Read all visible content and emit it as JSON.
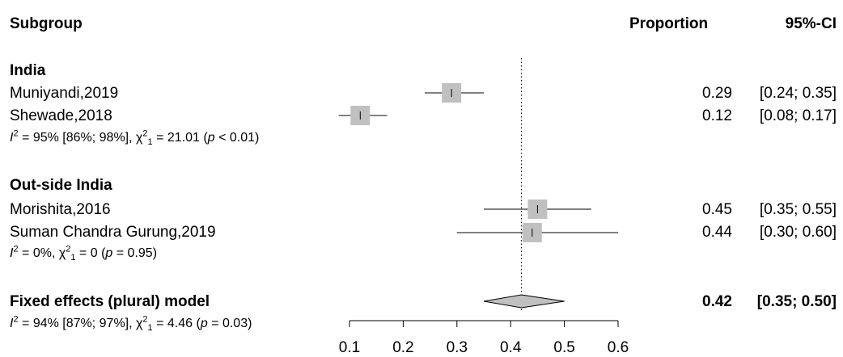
{
  "header": {
    "subgroup": "Subgroup",
    "proportion": "Proportion",
    "ci": "95%-CI"
  },
  "groups": [
    {
      "name": "India",
      "heterogeneity": {
        "i2": "95% [86%; 98%]",
        "chi2": "21.01",
        "df": "1",
        "p": "< 0.01"
      }
    },
    {
      "name": "Out-side India",
      "heterogeneity": {
        "i2": "0%",
        "chi2": "0",
        "df": "1",
        "p": "= 0.95"
      }
    }
  ],
  "overall": {
    "label": "Fixed effects (plural) model",
    "heterogeneity": {
      "i2": "94% [87%; 97%]",
      "chi2": "4.46",
      "df": "1",
      "p": "= 0.03"
    }
  },
  "chart_data": {
    "type": "forest",
    "studies": [
      {
        "label": "Muniyandi,2019",
        "group": "India",
        "estimate": 0.29,
        "lower": 0.24,
        "upper": 0.35,
        "est_text": "0.29",
        "ci_text": "[0.24; 0.35]"
      },
      {
        "label": "Shewade,2018",
        "group": "India",
        "estimate": 0.12,
        "lower": 0.08,
        "upper": 0.17,
        "est_text": "0.12",
        "ci_text": "[0.08; 0.17]"
      },
      {
        "label": "Morishita,2016",
        "group": "Out-side India",
        "estimate": 0.45,
        "lower": 0.35,
        "upper": 0.55,
        "est_text": "0.45",
        "ci_text": "[0.35; 0.55]"
      },
      {
        "label": "Suman Chandra Gurung,2019",
        "group": "Out-side India",
        "estimate": 0.44,
        "lower": 0.3,
        "upper": 0.6,
        "est_text": "0.44",
        "ci_text": "[0.30; 0.60]"
      }
    ],
    "pooled": {
      "estimate": 0.42,
      "lower": 0.35,
      "upper": 0.5,
      "est_text": "0.42",
      "ci_text": "[0.35; 0.50]"
    },
    "reference_line": 0.42,
    "x_ticks": [
      "0.1",
      "0.2",
      "0.3",
      "0.4",
      "0.5",
      "0.6"
    ],
    "xlim": [
      0.1,
      0.6
    ],
    "marker_color": "#c0c0c0",
    "diamond_color": "#c0c0c0"
  }
}
